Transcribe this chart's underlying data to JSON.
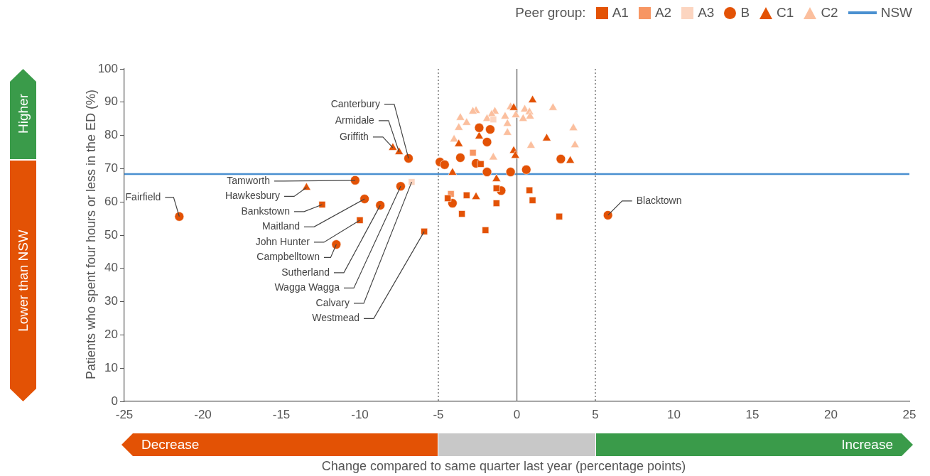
{
  "chart_data": {
    "type": "scatter",
    "xlabel": "Change compared to same quarter last year (percentage points)",
    "ylabel": "Patients who spent four hours or less in the ED (%)",
    "legend_title": "Peer group:",
    "legend": "top right",
    "grid": false,
    "xlim": [
      -25,
      25
    ],
    "xticks": [
      -25,
      -20,
      -15,
      -10,
      -5,
      0,
      5,
      10,
      15,
      20,
      25
    ],
    "ylim": [
      0,
      100
    ],
    "yticks": [
      0,
      10,
      20,
      30,
      40,
      50,
      60,
      70,
      80,
      90,
      100
    ],
    "series": [
      {
        "name": "A1",
        "color": "#e35205",
        "marker": "square",
        "x": [
          -12.4,
          -10.0,
          -5.9,
          -2.3,
          -1.3,
          -4.4,
          -3.2,
          -1.3,
          -3.5,
          -2.0,
          0.8,
          1.0,
          2.7
        ],
        "values": [
          59.2,
          54.5,
          51.1,
          71.4,
          64.1,
          61.1,
          62.0,
          59.6,
          56.4,
          51.5,
          63.5,
          60.5,
          55.6
        ]
      },
      {
        "name": "A2",
        "color": "#f79663",
        "marker": "square",
        "x": [
          -2.8,
          -4.2
        ],
        "values": [
          74.8,
          62.4
        ]
      },
      {
        "name": "A3",
        "color": "#fcd5c0",
        "marker": "square",
        "x": [
          -6.7,
          -1.5
        ],
        "values": [
          66.0,
          84.8
        ]
      },
      {
        "name": "B",
        "color": "#e35205",
        "marker": "circle",
        "x": [
          -21.5,
          -10.3,
          -9.7,
          -11.5,
          -8.7,
          -7.4,
          -6.9,
          5.8,
          -2.4,
          -1.7,
          -1.9,
          -3.6,
          -2.6,
          -4.9,
          -4.6,
          2.8,
          -1.9,
          -0.4,
          0.6,
          -1.0,
          -4.1
        ],
        "values": [
          55.6,
          66.5,
          60.9,
          47.2,
          59.0,
          64.7,
          73.1,
          56.0,
          82.3,
          81.8,
          78.0,
          73.3,
          71.6,
          72.0,
          71.2,
          72.9,
          69.0,
          69.0,
          69.7,
          63.4,
          59.6
        ]
      },
      {
        "name": "C1",
        "color": "#e35205",
        "marker": "triangle",
        "x": [
          -13.4,
          -7.9,
          -7.5,
          1.0,
          -0.2,
          -2.4,
          -3.7,
          -0.2,
          -0.1,
          1.9,
          3.4,
          -4.1,
          -1.3,
          -2.6
        ],
        "values": [
          64.3,
          76.3,
          75.0,
          90.6,
          88.3,
          79.7,
          77.4,
          75.4,
          73.9,
          79.1,
          72.4,
          68.8,
          66.9,
          61.5
        ]
      },
      {
        "name": "C2",
        "color": "#fbbf9e",
        "marker": "triangle",
        "x": [
          -0.4,
          0.5,
          0.8,
          2.3,
          -2.6,
          -2.8,
          -1.4,
          -1.6,
          -1.9,
          -0.75,
          -0.07,
          0.4,
          0.84,
          -3.6,
          -3.2,
          -3.7,
          -0.6,
          -0.6,
          3.6,
          -4.0,
          0.9,
          3.7,
          -1.5
        ],
        "values": [
          88.5,
          87.8,
          87.0,
          88.3,
          87.4,
          87.2,
          87.2,
          86.3,
          85.0,
          85.7,
          86.1,
          85.0,
          85.7,
          85.3,
          83.8,
          82.3,
          83.5,
          80.8,
          82.2,
          78.8,
          76.9,
          77.1,
          73.4
        ]
      }
    ],
    "ref_lines": [
      {
        "axis": "y",
        "value": 68.4,
        "label": "NSW",
        "color": "#4a90d0",
        "line_style": "solid"
      },
      {
        "axis": "x",
        "value": 0,
        "label": null,
        "color": "#777777",
        "line_style": "solid"
      },
      {
        "axis": "x",
        "value": -5,
        "label": null,
        "color": "#555555",
        "line_style": "dotted"
      },
      {
        "axis": "x",
        "value": 5,
        "label": null,
        "color": "#555555",
        "line_style": "dotted"
      }
    ],
    "annotations": [
      "Higher",
      "Lower than NSW",
      "Decrease",
      "Increase",
      {
        "text": "Canterbury",
        "x": -6.9,
        "y": 73.1
      },
      {
        "text": "Armidale",
        "x": -7.5,
        "y": 75.0
      },
      {
        "text": "Griffith",
        "x": -7.9,
        "y": 76.3
      },
      {
        "text": "Tamworth",
        "x": -10.3,
        "y": 66.5
      },
      {
        "text": "Hawkesbury",
        "x": -13.4,
        "y": 64.3
      },
      {
        "text": "Bankstown",
        "x": -12.4,
        "y": 59.2
      },
      {
        "text": "Maitland",
        "x": -9.7,
        "y": 60.9
      },
      {
        "text": "John Hunter",
        "x": -10.0,
        "y": 54.5
      },
      {
        "text": "Campbelltown",
        "x": -11.5,
        "y": 47.2
      },
      {
        "text": "Sutherland",
        "x": -8.7,
        "y": 59.0
      },
      {
        "text": "Wagga Wagga",
        "x": -7.4,
        "y": 64.7
      },
      {
        "text": "Calvary",
        "x": -6.7,
        "y": 66.0
      },
      {
        "text": "Westmead",
        "x": -5.9,
        "y": 51.1
      },
      {
        "text": "Fairfield",
        "x": -21.5,
        "y": 55.6
      },
      {
        "text": "Blacktown",
        "x": 5.8,
        "y": 56.0
      }
    ]
  }
}
